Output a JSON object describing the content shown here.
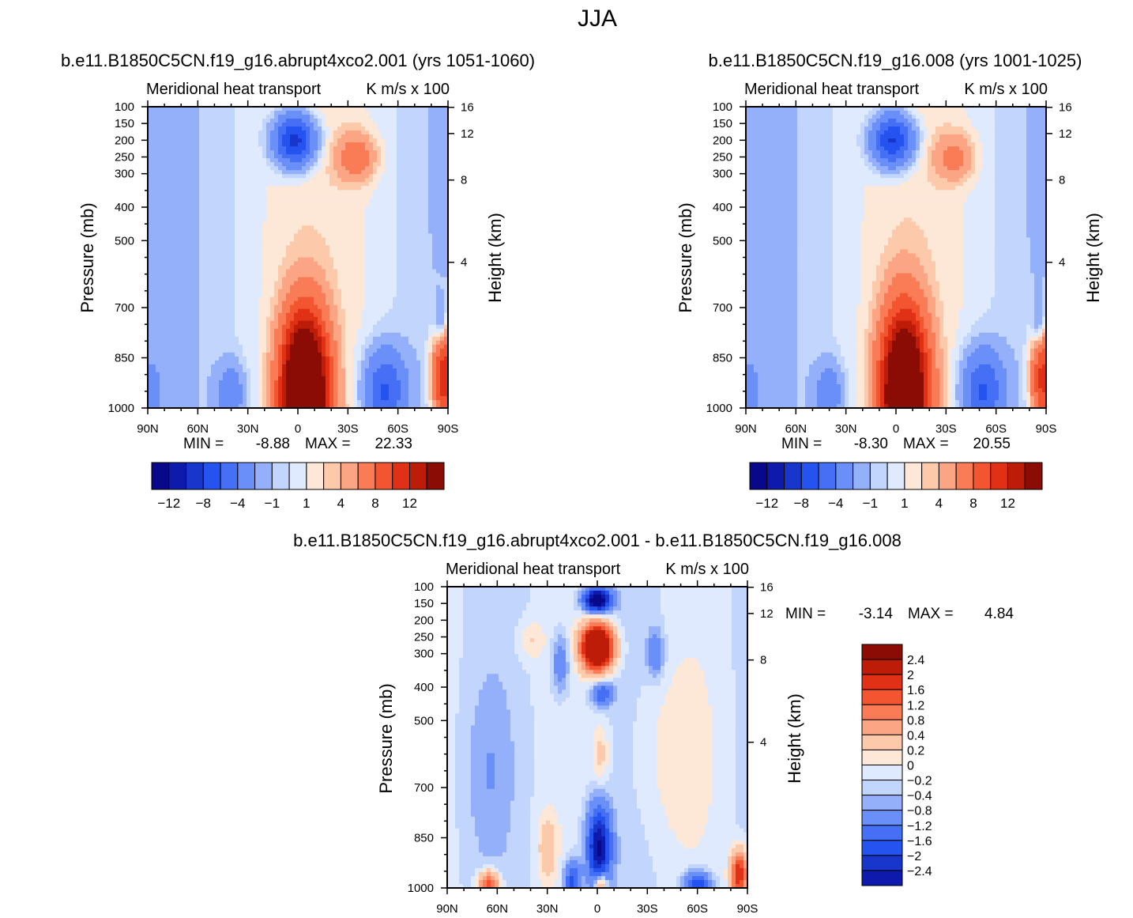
{
  "page": {
    "title": "JJA"
  },
  "colors": {
    "abs": [
      "#08088a",
      "#0d1aab",
      "#1936cc",
      "#2453f0",
      "#456ff5",
      "#6b8ff8",
      "#94b0fb",
      "#c2d6fd",
      "#dfeafe",
      "#fde7d7",
      "#fcc9ab",
      "#fca585",
      "#f97c56",
      "#f25530",
      "#e03015",
      "#bc1c08",
      "#8a0c04"
    ],
    "diff": [
      "#08088a",
      "#0d1aab",
      "#1936cc",
      "#2453f0",
      "#456ff5",
      "#6b8ff8",
      "#94b0fb",
      "#c2d6fd",
      "#dfeafe",
      "#fde7d7",
      "#fcc9ab",
      "#fca585",
      "#f97c56",
      "#f25530",
      "#e03015",
      "#bc1c08",
      "#8a0c04"
    ]
  },
  "chart_data": [
    {
      "type": "contour",
      "case_title": "b.e11.B1850C5CN.f19_g16.abrupt4xco2.001 (yrs 1051-1060)",
      "title": "Meridional heat transport",
      "units": "K m/s x 100",
      "xlabel": "",
      "ylabel": "Pressure (mb)",
      "y2label": "Height (km)",
      "xticks": [
        "90N",
        "60N",
        "30N",
        "0",
        "30S",
        "60S",
        "90S"
      ],
      "xlim": [
        90,
        -90
      ],
      "yticks": [
        100,
        150,
        200,
        250,
        300,
        400,
        500,
        700,
        850,
        1000
      ],
      "ylim": [
        100,
        1000
      ],
      "y2ticks": [
        4,
        8,
        12,
        16
      ],
      "min_label": "MIN =",
      "min": "-8.88",
      "max_label": "MAX =",
      "max": "22.33",
      "colorbar_labels": [
        "-12",
        "-8",
        "-4",
        "-1",
        "1",
        "4",
        "8",
        "12"
      ],
      "features": [
        {
          "lat": 2,
          "p": 200,
          "rx": 12,
          "rp": 75,
          "amp": -9
        },
        {
          "lat": -4,
          "p": 960,
          "rx": 13,
          "rp": 220,
          "amp": 22
        },
        {
          "lat": -52,
          "p": 950,
          "rx": 12,
          "rp": 120,
          "amp": -6
        },
        {
          "lat": 40,
          "p": 960,
          "rx": 8,
          "rp": 90,
          "amp": -3
        },
        {
          "lat": 88,
          "p": 960,
          "rx": 5,
          "rp": 90,
          "amp": -2.5
        },
        {
          "lat": -88,
          "p": 900,
          "rx": 7,
          "rp": 150,
          "amp": 9
        },
        {
          "lat": -86,
          "p": 760,
          "rx": 4,
          "rp": 80,
          "amp": -3
        },
        {
          "lat": -35,
          "p": 250,
          "rx": 12,
          "rp": 70,
          "amp": 3
        }
      ]
    },
    {
      "type": "contour",
      "case_title": "b.e11.B1850C5CN.f19_g16.008 (yrs 1001-1025)",
      "title": "Meridional heat transport",
      "units": "K m/s x 100",
      "xlabel": "",
      "ylabel": "Pressure (mb)",
      "y2label": "Height (km)",
      "xticks": [
        "90N",
        "60N",
        "30N",
        "0",
        "30S",
        "60S",
        "90S"
      ],
      "xlim": [
        90,
        -90
      ],
      "yticks": [
        100,
        150,
        200,
        250,
        300,
        400,
        500,
        700,
        850,
        1000
      ],
      "ylim": [
        100,
        1000
      ],
      "y2ticks": [
        4,
        8,
        12,
        16
      ],
      "min_label": "MIN =",
      "min": "-8.30",
      "max_label": "MAX =",
      "max": "20.55",
      "colorbar_labels": [
        "-12",
        "-8",
        "-4",
        "-1",
        "1",
        "4",
        "8",
        "12"
      ],
      "features": [
        {
          "lat": 2,
          "p": 200,
          "rx": 12,
          "rp": 75,
          "amp": -8.5
        },
        {
          "lat": -5,
          "p": 960,
          "rx": 13,
          "rp": 230,
          "amp": 20
        },
        {
          "lat": -52,
          "p": 950,
          "rx": 12,
          "rp": 120,
          "amp": -6
        },
        {
          "lat": 40,
          "p": 960,
          "rx": 8,
          "rp": 90,
          "amp": -3
        },
        {
          "lat": 88,
          "p": 960,
          "rx": 5,
          "rp": 90,
          "amp": -2.5
        },
        {
          "lat": -88,
          "p": 900,
          "rx": 7,
          "rp": 150,
          "amp": 8
        },
        {
          "lat": -86,
          "p": 760,
          "rx": 4,
          "rp": 80,
          "amp": -3
        },
        {
          "lat": -35,
          "p": 250,
          "rx": 12,
          "rp": 70,
          "amp": 2.5
        }
      ]
    },
    {
      "type": "contour",
      "case_title": "b.e11.B1850C5CN.f19_g16.abrupt4xco2.001 - b.e11.B1850C5CN.f19_g16.008",
      "title": "Meridional heat transport",
      "units": "K m/s x 100",
      "xlabel": "",
      "ylabel": "Pressure (mb)",
      "y2label": "Height (km)",
      "xticks": [
        "90N",
        "60N",
        "30N",
        "0",
        "30S",
        "60S",
        "90S"
      ],
      "xlim": [
        90,
        -90
      ],
      "yticks": [
        100,
        150,
        200,
        250,
        300,
        400,
        500,
        700,
        850,
        1000
      ],
      "ylim": [
        100,
        1000
      ],
      "y2ticks": [
        4,
        8,
        12,
        16
      ],
      "min_label": "MIN =",
      "min": "-3.14",
      "max_label": "MAX =",
      "max": "4.84",
      "colorbar_labels": [
        "2.4",
        "2",
        "1.6",
        "1.2",
        "0.8",
        "0.4",
        "0.2",
        "0",
        "-0.2",
        "-0.4",
        "-0.8",
        "-1.2",
        "-1.6",
        "-2",
        "-2.4"
      ],
      "features": [
        {
          "lat": 0,
          "p": 140,
          "rx": 8,
          "rp": 35,
          "amp": -3.1
        },
        {
          "lat": 0,
          "p": 280,
          "rx": 9,
          "rp": 65,
          "amp": 4.8
        },
        {
          "lat": -3,
          "p": 420,
          "rx": 6,
          "rp": 35,
          "amp": -1.2
        },
        {
          "lat": -2,
          "p": 600,
          "rx": 5,
          "rp": 90,
          "amp": 0.5
        },
        {
          "lat": -1,
          "p": 880,
          "rx": 7,
          "rp": 120,
          "amp": -2.5
        },
        {
          "lat": -2,
          "p": 990,
          "rx": 4,
          "rp": 40,
          "amp": 1.6
        },
        {
          "lat": 65,
          "p": 990,
          "rx": 6,
          "rp": 40,
          "amp": 2.0
        },
        {
          "lat": 15,
          "p": 980,
          "rx": 5,
          "rp": 60,
          "amp": -1.4
        },
        {
          "lat": -60,
          "p": 990,
          "rx": 8,
          "rp": 40,
          "amp": -1.6
        },
        {
          "lat": -85,
          "p": 960,
          "rx": 5,
          "rp": 70,
          "amp": 2.4
        },
        {
          "lat": 22,
          "p": 330,
          "rx": 5,
          "rp": 90,
          "amp": -0.8
        },
        {
          "lat": -35,
          "p": 300,
          "rx": 5,
          "rp": 70,
          "amp": -0.8
        },
        {
          "lat": 40,
          "p": 260,
          "rx": 8,
          "rp": 60,
          "amp": 0.4
        },
        {
          "lat": 30,
          "p": 880,
          "rx": 6,
          "rp": 100,
          "amp": 0.6
        },
        {
          "lat": -45,
          "p": 600,
          "rx": 25,
          "rp": 280,
          "amp": 0.3
        },
        {
          "lat": 65,
          "p": 650,
          "rx": 15,
          "rp": 260,
          "amp": -0.3
        }
      ]
    }
  ]
}
